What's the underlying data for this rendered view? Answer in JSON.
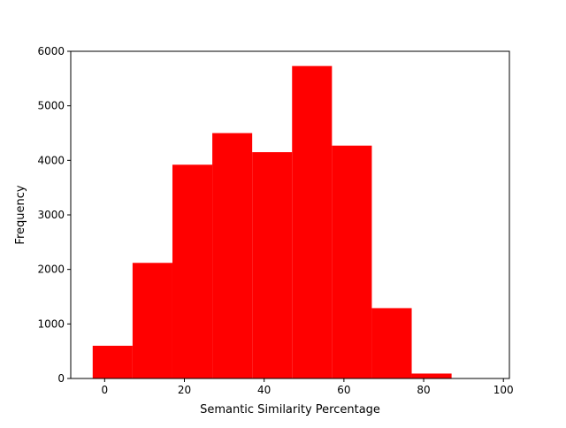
{
  "chart_data": {
    "type": "bar",
    "title": "",
    "xlabel": "Semantic Similarity Percentage",
    "ylabel": "Frequency",
    "bar_color": "#ff0000",
    "xlim": [
      -8.5,
      101.5
    ],
    "ylim": [
      0,
      6000
    ],
    "x_ticks": [
      0,
      20,
      40,
      60,
      80,
      100
    ],
    "y_ticks": [
      0,
      1000,
      2000,
      3000,
      4000,
      5000,
      6000
    ],
    "bins": [
      {
        "start": -3,
        "end": 7,
        "value": 600
      },
      {
        "start": 7,
        "end": 17,
        "value": 2120
      },
      {
        "start": 17,
        "end": 27,
        "value": 3920
      },
      {
        "start": 27,
        "end": 37,
        "value": 4500
      },
      {
        "start": 37,
        "end": 47,
        "value": 4150
      },
      {
        "start": 47,
        "end": 57,
        "value": 5730
      },
      {
        "start": 57,
        "end": 67,
        "value": 4270
      },
      {
        "start": 67,
        "end": 77,
        "value": 1290
      },
      {
        "start": 77,
        "end": 87,
        "value": 90
      },
      {
        "start": 87,
        "end": 97,
        "value": 0
      }
    ],
    "grid": false,
    "legend": "none"
  }
}
